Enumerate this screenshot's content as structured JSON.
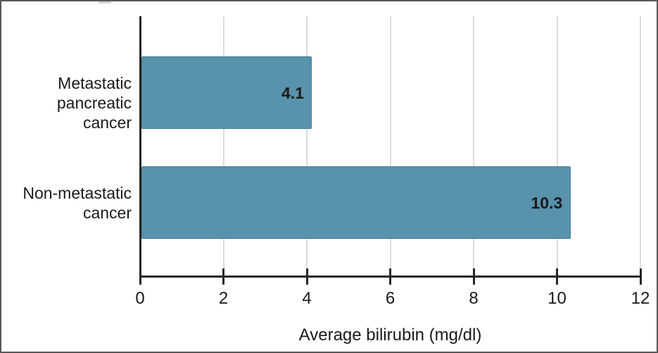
{
  "chart_data": {
    "type": "bar",
    "orientation": "horizontal",
    "title": "",
    "xlabel": "Average bilirubin (mg/dl)",
    "ylabel": "",
    "categories": [
      "Metastatic pancreatic cancer",
      "Non-metastatic cancer"
    ],
    "category_lines": [
      [
        "Metastatic",
        "pancreatic cancer"
      ],
      [
        "Non-metastatic",
        "cancer"
      ]
    ],
    "values": [
      4.1,
      10.3
    ],
    "value_labels": [
      "4.1",
      "10.3"
    ],
    "xlim": [
      0,
      12
    ],
    "xtick_values": [
      0,
      2,
      4,
      6,
      8,
      10,
      12
    ],
    "xtick_labels": [
      "0",
      "2",
      "4",
      "6",
      "8",
      "10",
      "12"
    ],
    "grid": "vertical-gridlines-on",
    "legend": "none",
    "colors": {
      "bar_fill": "#5892ad",
      "bar_border": "#4a7d98",
      "gridline": "#dcdcdc",
      "axis": "#262626",
      "text": "#1a1a1a",
      "frame_border": "#595959",
      "background": "#ffffff"
    }
  }
}
